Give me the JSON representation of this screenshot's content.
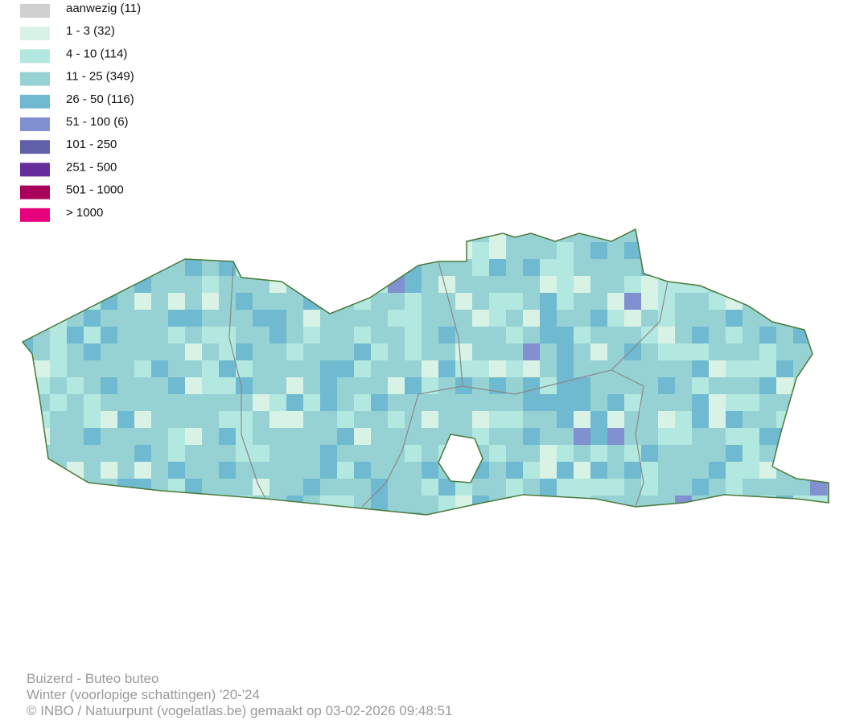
{
  "legend": {
    "items": [
      {
        "label": "aanwezig (11)",
        "color": "#d0d0d0"
      },
      {
        "label": "1 - 3 (32)",
        "color": "#d8f3e6"
      },
      {
        "label": "4 - 10 (114)",
        "color": "#b3e8e0"
      },
      {
        "label": "11 - 25 (349)",
        "color": "#96d2d4"
      },
      {
        "label": "26 - 50 (116)",
        "color": "#6fbad0"
      },
      {
        "label": "51 - 100 (6)",
        "color": "#8090d0"
      },
      {
        "label": "101 - 250",
        "color": "#6060a8"
      },
      {
        "label": "251 - 500",
        "color": "#662d9c"
      },
      {
        "label": "501 - 1000",
        "color": "#a8005a"
      },
      {
        "label": "> 1000",
        "color": "#e6007e"
      }
    ]
  },
  "caption": {
    "species": "Buizerd - Buteo buteo",
    "period": "Winter (voorlopige schattingen) '20-'24",
    "credit": "© INBO / Natuurpunt (vogelatlas.be) gemaakt op 03-02-2026 09:48:51"
  }
}
